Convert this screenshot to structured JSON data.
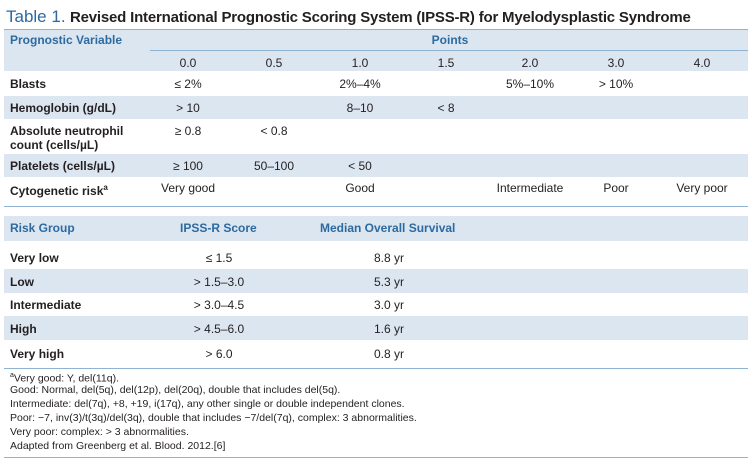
{
  "title": {
    "label": "Table 1.",
    "text": "Revised International Prognostic Scoring System (IPSS-R) for Myelodysplastic Syndrome"
  },
  "table1": {
    "corner_header": "Prognostic Variable",
    "points_header": "Points",
    "points": [
      "0.0",
      "0.5",
      "1.0",
      "1.5",
      "2.0",
      "3.0",
      "4.0"
    ],
    "rows": [
      {
        "label": "Blasts",
        "sup": "",
        "cells": {
          "p00": "≤ 2%",
          "p10": "2%–4%",
          "p20": "5%–10%",
          "p30": "> 10%"
        }
      },
      {
        "label": "Hemoglobin (g/dL)",
        "sup": "",
        "cells": {
          "p00": "> 10",
          "p10": "8–10",
          "p15": "< 8"
        }
      },
      {
        "label_line1": "Absolute neutrophil",
        "label_line2": "count (cells/µL)",
        "cells": {
          "p00": "≥ 0.8",
          "p05": "< 0.8"
        }
      },
      {
        "label": "Platelets (cells/µL)",
        "sup": "",
        "cells": {
          "p00": "≥ 100",
          "p05": "50–100",
          "p10": "< 50"
        }
      },
      {
        "label": "Cytogenetic risk",
        "sup": "a",
        "cells": {
          "p00": "Very good",
          "p10": "Good",
          "p20": "Intermediate",
          "p30": "Poor",
          "p40": "Very poor"
        }
      }
    ]
  },
  "table2": {
    "headers": [
      "Risk Group",
      "IPSS-R Score",
      "Median Overall Survival"
    ],
    "rows": [
      {
        "group": "Very low",
        "score": "≤ 1.5",
        "survival": "8.8 yr"
      },
      {
        "group": "Low",
        "score": "> 1.5–3.0",
        "survival": "5.3 yr"
      },
      {
        "group": "Intermediate",
        "score": "> 3.0–4.5",
        "survival": "3.0 yr"
      },
      {
        "group": "High",
        "score": "> 4.5–6.0",
        "survival": "1.6 yr"
      },
      {
        "group": "Very high",
        "score": "> 6.0",
        "survival": "0.8 yr"
      }
    ]
  },
  "footnotes": {
    "sup": "a",
    "very_good": "Very good: Y, del(11q).",
    "good": "Good: Normal, del(5q), del(12p), del(20q), double that includes del(5q).",
    "intermediate": "Intermediate: del(7q), +8, +19, i(17q), any other single or double independent clones.",
    "poor": "Poor: −7, inv(3)/t(3q)/del(3q), double that includes −7/del(7q), complex: 3 abnormalities.",
    "very_poor": "Very poor: complex: > 3 abnormalities.",
    "source": "Adapted from Greenberg et al. Blood. 2012.[6]"
  },
  "colors": {
    "accent": "#2c6aa0",
    "band": "#dce6f1",
    "rule": "#8fb3d3"
  }
}
